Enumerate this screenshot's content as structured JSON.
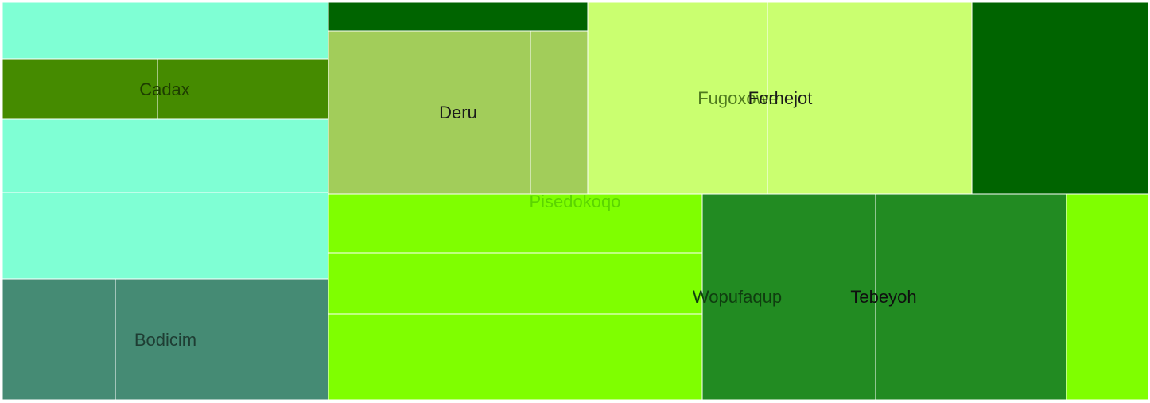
{
  "chart_data": {
    "type": "treemap",
    "title": "",
    "groups": [
      {
        "label": "Cadax",
        "color": "#458B00",
        "label_color": "#1E3D00"
      },
      {
        "label": "Bodicim",
        "color": "#458B74",
        "label_color": "#1E3D33"
      },
      {
        "label": "Deru",
        "color": "#A2CD5A",
        "label_color": "#1A1A1A"
      },
      {
        "label": "Fugoxowe",
        "color": "#CAFF70",
        "label_color": "#4F7A1E"
      },
      {
        "label": "Ferhejot",
        "color": "#CAFF70",
        "label_color": "#1A1A1A"
      },
      {
        "label": "Pisedokoqo",
        "color": "#7FFF00",
        "label_color": "#5BD500"
      },
      {
        "label": "Wopufaqup",
        "color": "#228B22",
        "label_color": "#0F3D0F"
      },
      {
        "label": "Tebeyoh",
        "color": "#228B22",
        "label_color": "#0F0F0F"
      },
      {
        "label": "",
        "color": "#006400",
        "label_color": "#006400"
      },
      {
        "label": "",
        "color": "#7FFFD4",
        "label_color": "#7FFFD4"
      }
    ]
  }
}
